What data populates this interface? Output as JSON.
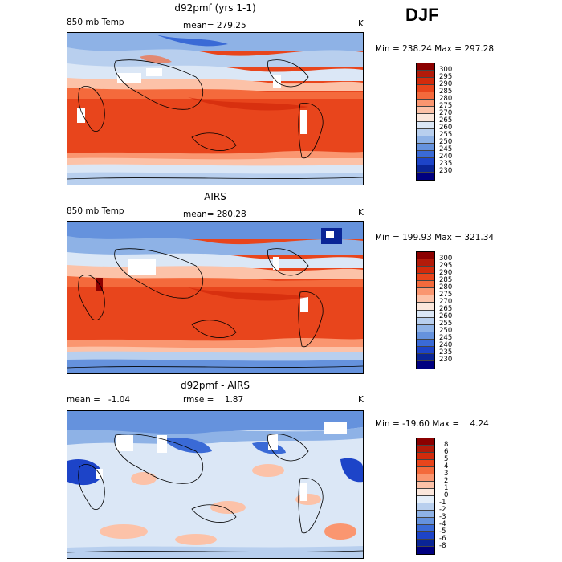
{
  "season": "DJF",
  "variable": "850 mb Temp",
  "panels": [
    {
      "title": "d92pmf (yrs 1-1)",
      "left_text": "850 mb Temp",
      "mid_text": "mean= 279.25",
      "unit": "K",
      "minmax": "Min = 238.24 Max = 297.28",
      "colorbar": {
        "labels": [
          "300",
          "295",
          "290",
          "285",
          "280",
          "275",
          "270",
          "265",
          "260",
          "255",
          "250",
          "245",
          "240",
          "235",
          "230"
        ],
        "colors": [
          "#8b0000",
          "#b31b0a",
          "#d32b0c",
          "#e8451c",
          "#f46a3c",
          "#fa9670",
          "#fcc2a8",
          "#fbe7dc",
          "#dbe7f6",
          "#b8cfee",
          "#8eb2e6",
          "#6592dd",
          "#3a6ad6",
          "#1d44c8",
          "#0a2596",
          "#000080"
        ]
      }
    },
    {
      "title": "AIRS",
      "left_text": "850 mb Temp",
      "mid_text": "mean= 280.28",
      "unit": "K",
      "minmax": "Min = 199.93 Max = 321.34",
      "colorbar": {
        "labels": [
          "300",
          "295",
          "290",
          "285",
          "280",
          "275",
          "270",
          "265",
          "260",
          "255",
          "250",
          "245",
          "240",
          "235",
          "230"
        ],
        "colors": [
          "#8b0000",
          "#b31b0a",
          "#d32b0c",
          "#e8451c",
          "#f46a3c",
          "#fa9670",
          "#fcc2a8",
          "#fbe7dc",
          "#dbe7f6",
          "#b8cfee",
          "#8eb2e6",
          "#6592dd",
          "#3a6ad6",
          "#1d44c8",
          "#0a2596",
          "#000080"
        ]
      }
    },
    {
      "title": "d92pmf - AIRS",
      "left_text": "mean =   -1.04",
      "mid_text": "rmse =    1.87",
      "unit": "K",
      "minmax": "Min = -19.60 Max =    4.24",
      "colorbar": {
        "labels": [
          "8",
          "6",
          "5",
          "4",
          "3",
          "2",
          "1",
          "0",
          "-1",
          "-2",
          "-3",
          "-4",
          "-5",
          "-6",
          "-8"
        ],
        "colors": [
          "#8b0000",
          "#b31b0a",
          "#d32b0c",
          "#e8451c",
          "#f46a3c",
          "#fa9670",
          "#fcc2a8",
          "#fbe7dc",
          "#e4eef9",
          "#b8cfee",
          "#8eb2e6",
          "#6592dd",
          "#3a6ad6",
          "#1d44c8",
          "#0a2596",
          "#000080"
        ]
      }
    }
  ]
}
